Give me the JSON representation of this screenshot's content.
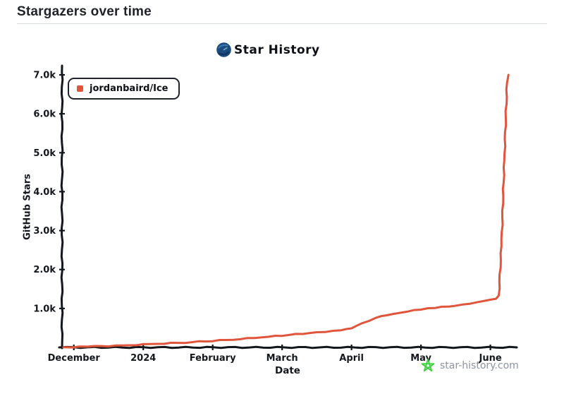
{
  "page": {
    "title": "Stargazers over time"
  },
  "chart": {
    "title": "Star History",
    "legend": {
      "items": [
        {
          "label": "jordanbaird/Ice",
          "color": "#e0563d"
        }
      ]
    },
    "watermark": {
      "label": "star-history.com",
      "text_color": "#8b949e",
      "icon_color": "#38d13b"
    }
  },
  "chart_data": {
    "type": "line",
    "title": "Star History",
    "xlabel": "Date",
    "ylabel": "GitHub Stars",
    "x_unit": "months since 2023-12-01",
    "grid": false,
    "legend_position": "top-left",
    "xlim": [
      -0.17,
      6.38
    ],
    "ylim": [
      0,
      7200
    ],
    "x_ticks": [
      {
        "t": 0,
        "label": "December"
      },
      {
        "t": 1,
        "label": "2024"
      },
      {
        "t": 2,
        "label": "February"
      },
      {
        "t": 3,
        "label": "March"
      },
      {
        "t": 4,
        "label": "April"
      },
      {
        "t": 5,
        "label": "May"
      },
      {
        "t": 6,
        "label": "June"
      }
    ],
    "y_ticks": [
      {
        "value": 1000,
        "label": "1.0k"
      },
      {
        "value": 2000,
        "label": "2.0k"
      },
      {
        "value": 3000,
        "label": "3.0k"
      },
      {
        "value": 4000,
        "label": "4.0k"
      },
      {
        "value": 5000,
        "label": "5.0k"
      },
      {
        "value": 6000,
        "label": "6.0k"
      },
      {
        "value": 7000,
        "label": "7.0k"
      }
    ],
    "series": [
      {
        "name": "jordanbaird/Ice",
        "color": "#e0563d",
        "points": [
          [
            -0.15,
            5
          ],
          [
            0.2,
            20
          ],
          [
            0.7,
            50
          ],
          [
            1.2,
            90
          ],
          [
            1.7,
            135
          ],
          [
            2.2,
            190
          ],
          [
            2.7,
            255
          ],
          [
            3.1,
            320
          ],
          [
            3.5,
            390
          ],
          [
            3.85,
            440
          ],
          [
            4.0,
            490
          ],
          [
            4.15,
            620
          ],
          [
            4.35,
            760
          ],
          [
            4.6,
            860
          ],
          [
            4.9,
            960
          ],
          [
            5.2,
            1010
          ],
          [
            5.6,
            1100
          ],
          [
            5.9,
            1190
          ],
          [
            6.08,
            1250
          ],
          [
            6.12,
            1330
          ],
          [
            6.16,
            2600
          ],
          [
            6.2,
            4800
          ],
          [
            6.24,
            6800
          ],
          [
            6.26,
            7000
          ]
        ]
      }
    ]
  }
}
